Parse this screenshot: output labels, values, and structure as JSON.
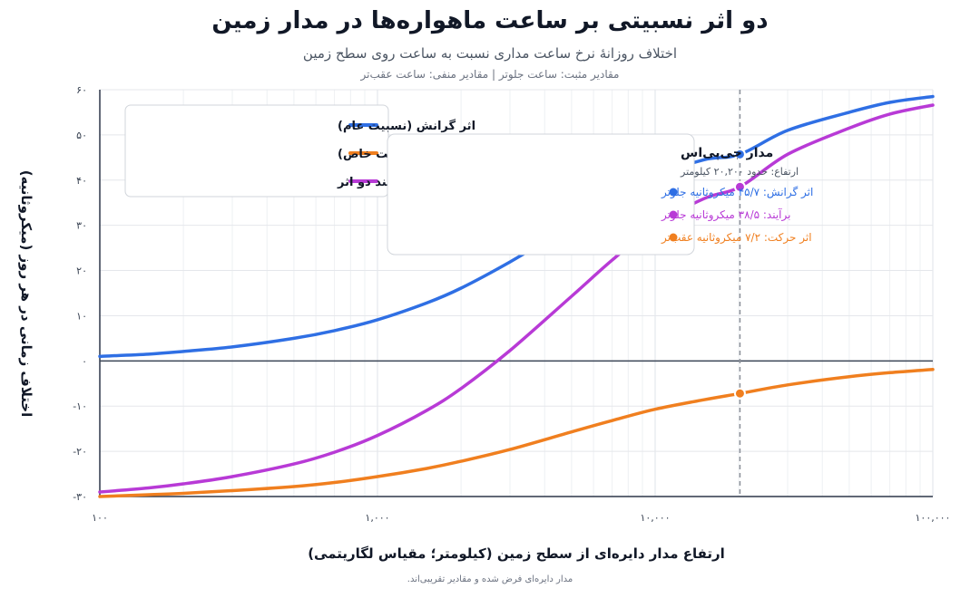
{
  "title": "دو اثر نسبیتی بر ساعت ماهواره‌ها در مدار زمین",
  "subtitle": "اختلاف روزانهٔ نرخ ساعت مداری نسبت به ساعت روی سطح زمین",
  "subnote": "مقادیر مثبت: ساعت جلوتر | مقادیر منفی: ساعت عقب‌تر",
  "footnote": "مدار دایره‌ای فرض شده و مقادیر تقریبی‌اند.",
  "colors": {
    "gravity": "#2f6fe4",
    "motion": "#f07f1f",
    "net": "#b83ad6"
  },
  "chart_data": {
    "type": "line",
    "xlabel": "ارتفاع مدار دایره‌ای از سطح زمین (کیلومتر؛ مقیاس لگاریتمی)",
    "ylabel": "اختلاف زمانی در هر روز (میکروثانیه)",
    "x_scale": "log",
    "xlim": [
      100,
      100000
    ],
    "ylim": [
      -30,
      60
    ],
    "x_ticks": [
      100,
      1000,
      10000,
      100000
    ],
    "x_tick_labels": [
      "۱۰۰",
      "۱,۰۰۰",
      "۱۰,۰۰۰",
      "۱۰۰,۰۰۰"
    ],
    "y_ticks": [
      -30,
      -20,
      -10,
      0,
      10,
      20,
      30,
      40,
      50,
      60
    ],
    "y_tick_labels": [
      "-۳۰",
      "-۲۰",
      "-۱۰",
      "۰",
      "۱۰",
      "۲۰",
      "۳۰",
      "۴۰",
      "۵۰",
      "۶۰"
    ],
    "grid": true,
    "legend_position": "top-left",
    "x": [
      100,
      150,
      200,
      300,
      500,
      700,
      1000,
      1500,
      2000,
      3000,
      5000,
      7000,
      10000,
      15000,
      20200,
      30000,
      50000,
      70000,
      100000
    ],
    "series": [
      {
        "name": "اثر گرانش (نسبیت عام)",
        "key": "gravity",
        "values": [
          1.0,
          1.5,
          2.1,
          3.1,
          5.0,
          6.7,
          9.1,
          12.8,
          16.1,
          21.9,
          30.0,
          35.5,
          40.8,
          44.5,
          45.7,
          51.0,
          55.0,
          57.2,
          58.5
        ]
      },
      {
        "name": "اثر حرکت (نسبیت خاص)",
        "key": "motion",
        "values": [
          -30.0,
          -29.6,
          -29.3,
          -28.7,
          -27.8,
          -26.9,
          -25.6,
          -23.8,
          -22.2,
          -19.6,
          -15.7,
          -13.2,
          -10.7,
          -8.6,
          -7.2,
          -5.3,
          -3.5,
          -2.6,
          -1.9
        ]
      },
      {
        "name": "برآیند دو اثر",
        "key": "net",
        "values": [
          -29.0,
          -28.1,
          -27.2,
          -25.6,
          -22.8,
          -20.2,
          -16.5,
          -11.0,
          -6.1,
          2.3,
          14.3,
          22.3,
          30.1,
          35.9,
          38.5,
          45.7,
          51.5,
          54.6,
          56.6
        ]
      }
    ],
    "marker": {
      "x": 20200,
      "title": "مدار جی‌پی‌اس",
      "subtitle": "ارتفاع: حدود ۲۰,۲۰۰ کیلومتر",
      "points": [
        {
          "key": "gravity",
          "y": 45.7,
          "label": "اثر گرانش: ۴۵/۷ میکروثانیه جلوتر"
        },
        {
          "key": "net",
          "y": 38.5,
          "label": "برآیند: ۳۸/۵ میکروثانیه جلوتر"
        },
        {
          "key": "motion",
          "y": -7.2,
          "label": "اثر حرکت: ۷/۲ میکروثانیه عقب‌تر"
        }
      ]
    }
  }
}
